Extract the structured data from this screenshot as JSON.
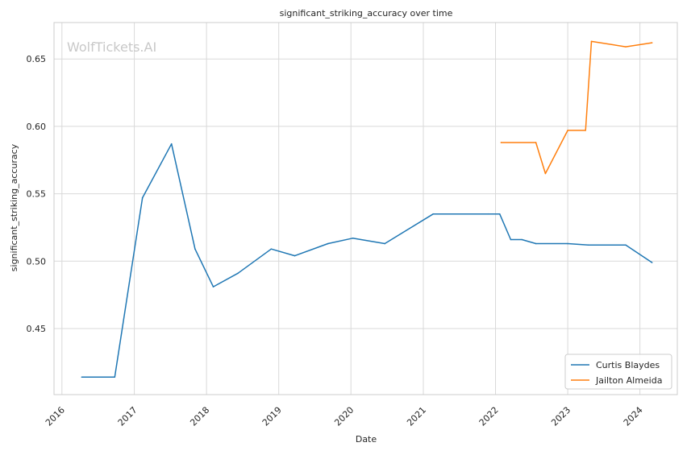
{
  "chart_data": {
    "type": "line",
    "title": "significant_striking_accuracy over time",
    "xlabel": "Date",
    "ylabel": "significant_striking_accuracy",
    "watermark": "WolfTickets.AI",
    "xlim": [
      "2015-11-22",
      "2024-07-08"
    ],
    "ylim": [
      0.401,
      0.677
    ],
    "x_ticks": [
      "2016",
      "2017",
      "2018",
      "2019",
      "2020",
      "2021",
      "2022",
      "2023",
      "2024"
    ],
    "y_ticks": [
      "0.45",
      "0.50",
      "0.55",
      "0.60",
      "0.65"
    ],
    "grid": true,
    "legend_position": "bottom-right",
    "colors": {
      "Curtis Blaydes": "#1f77b4",
      "Jailton Almeida": "#ff7f0e",
      "grid": "#d9d9d9",
      "frame": "#cccccc"
    },
    "series": [
      {
        "name": "Curtis Blaydes",
        "points": [
          [
            "2016-04-10",
            0.414
          ],
          [
            "2016-09-24",
            0.414
          ],
          [
            "2017-02-11",
            0.547
          ],
          [
            "2017-07-08",
            0.587
          ],
          [
            "2017-11-04",
            0.509
          ],
          [
            "2018-02-04",
            0.481
          ],
          [
            "2018-06-09",
            0.491
          ],
          [
            "2018-11-24",
            0.509
          ],
          [
            "2019-03-23",
            0.504
          ],
          [
            "2019-09-07",
            0.513
          ],
          [
            "2020-01-10",
            0.517
          ],
          [
            "2020-06-20",
            0.513
          ],
          [
            "2021-02-20",
            0.535
          ],
          [
            "2021-11-25",
            0.535
          ],
          [
            "2022-01-22",
            0.535
          ],
          [
            "2022-03-19",
            0.516
          ],
          [
            "2022-05-14",
            0.516
          ],
          [
            "2022-07-24",
            0.513
          ],
          [
            "2023-01-01",
            0.513
          ],
          [
            "2023-04-15",
            0.512
          ],
          [
            "2023-10-21",
            0.512
          ],
          [
            "2024-03-02",
            0.499
          ]
        ]
      },
      {
        "name": "Jailton Almeida",
        "points": [
          [
            "2022-01-29",
            0.588
          ],
          [
            "2022-07-24",
            0.588
          ],
          [
            "2022-09-10",
            0.565
          ],
          [
            "2023-01-01",
            0.597
          ],
          [
            "2023-04-01",
            0.597
          ],
          [
            "2023-05-01",
            0.663
          ],
          [
            "2023-10-21",
            0.659
          ],
          [
            "2024-03-02",
            0.662
          ]
        ]
      }
    ]
  }
}
